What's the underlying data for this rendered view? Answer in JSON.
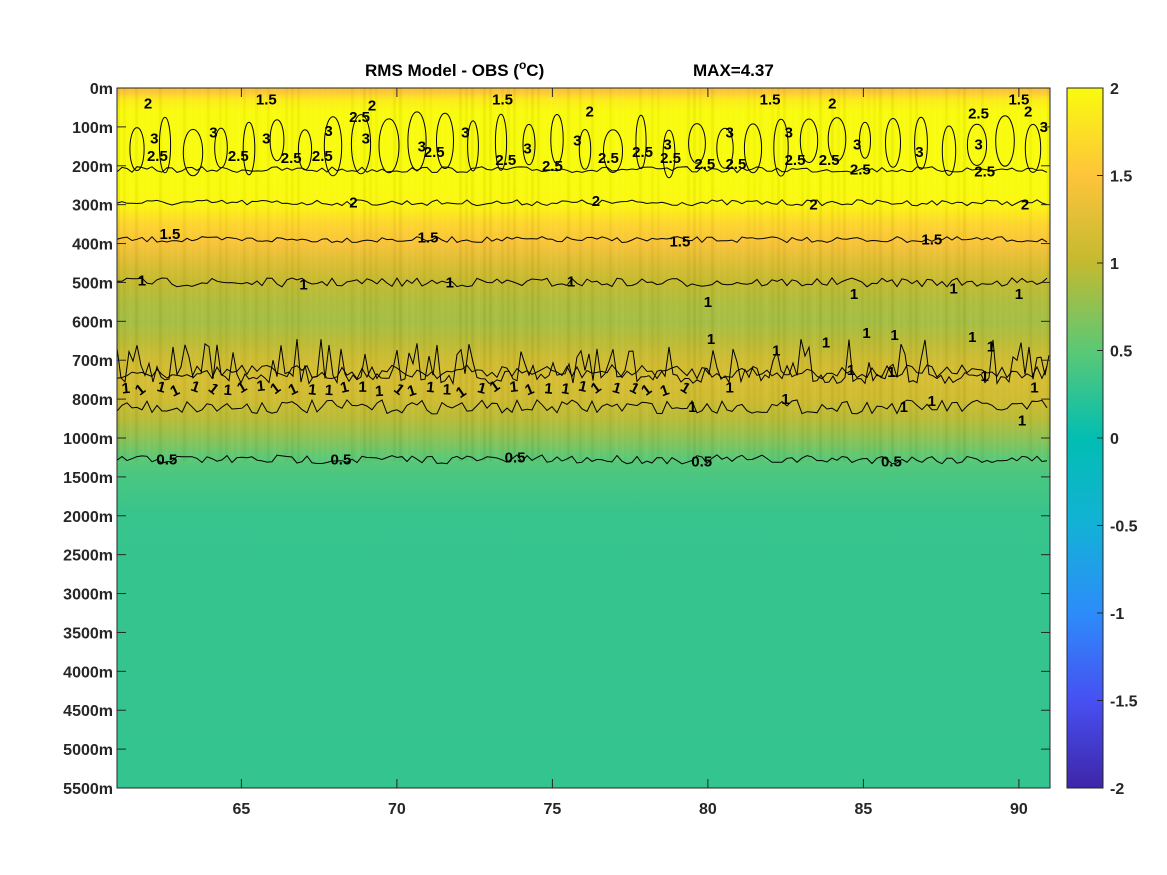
{
  "chart_data": {
    "type": "heatmap",
    "title": "RMS Model - OBS (",
    "title_unit_sup": "o",
    "title_unit_suffix": "C)",
    "title_max": "MAX=4.37",
    "x_ticks": [
      65,
      70,
      75,
      80,
      85,
      90
    ],
    "xlim": [
      61,
      91
    ],
    "y_tick_labels": [
      "0m",
      "100m",
      "200m",
      "300m",
      "400m",
      "500m",
      "600m",
      "700m",
      "800m",
      "1000m",
      "1500m",
      "2000m",
      "2500m",
      "3000m",
      "3500m",
      "4000m",
      "4500m",
      "5000m",
      "5500m"
    ],
    "colorbar": {
      "ticks": [
        2,
        1.5,
        1,
        0.5,
        0,
        -0.5,
        -1,
        -1.5,
        -2
      ],
      "clim": [
        -2,
        2
      ],
      "colormap": "parula"
    },
    "depth_profile": [
      {
        "level": 0.0,
        "value": 1.4
      },
      {
        "level": 0.12,
        "value": 1.55
      },
      {
        "level": 0.3,
        "value": 1.85
      },
      {
        "level": 0.6,
        "value": 2.3
      },
      {
        "level": 1.0,
        "value": 2.5
      },
      {
        "level": 1.5,
        "value": 2.6
      },
      {
        "level": 2.0,
        "value": 2.5
      },
      {
        "level": 2.5,
        "value": 2.25
      },
      {
        "level": 3.0,
        "value": 1.95
      },
      {
        "level": 3.5,
        "value": 1.65
      },
      {
        "level": 4.0,
        "value": 1.45
      },
      {
        "level": 4.5,
        "value": 1.2
      },
      {
        "level": 5.0,
        "value": 1.0
      },
      {
        "level": 5.5,
        "value": 0.9
      },
      {
        "level": 6.0,
        "value": 0.85
      },
      {
        "level": 6.5,
        "value": 0.95
      },
      {
        "level": 7.0,
        "value": 1.1
      },
      {
        "level": 7.5,
        "value": 1.15
      },
      {
        "level": 8.0,
        "value": 1.1
      },
      {
        "level": 8.5,
        "value": 0.95
      },
      {
        "level": 9.0,
        "value": 0.75
      },
      {
        "level": 9.5,
        "value": 0.5
      },
      {
        "level": 10.0,
        "value": 0.4
      },
      {
        "level": 11.0,
        "value": 0.3
      },
      {
        "level": 18.0,
        "value": 0.28
      }
    ],
    "contour_lines": [
      {
        "value": 2.5,
        "level": 2.1
      },
      {
        "value": 2,
        "level": 2.95
      },
      {
        "value": 1.5,
        "level": 3.9
      },
      {
        "value": 1,
        "level": 5.0
      },
      {
        "value": 1,
        "level": 7.3
      },
      {
        "value": 1,
        "level": 8.2
      },
      {
        "value": 0.5,
        "level": 9.55
      }
    ],
    "contour_labels": [
      {
        "text": "2",
        "x": 62.0,
        "level": 0.4
      },
      {
        "text": "1.5",
        "x": 65.8,
        "level": 0.3
      },
      {
        "text": "2",
        "x": 69.2,
        "level": 0.45
      },
      {
        "text": "2.5",
        "x": 68.8,
        "level": 0.75
      },
      {
        "text": "1.5",
        "x": 73.4,
        "level": 0.3
      },
      {
        "text": "2",
        "x": 76.2,
        "level": 0.6
      },
      {
        "text": "1.5",
        "x": 82.0,
        "level": 0.3
      },
      {
        "text": "2",
        "x": 84.0,
        "level": 0.4
      },
      {
        "text": "2.5",
        "x": 88.7,
        "level": 0.65
      },
      {
        "text": "1.5",
        "x": 90.0,
        "level": 0.3
      },
      {
        "text": "2",
        "x": 90.3,
        "level": 0.6
      },
      {
        "text": "3",
        "x": 90.8,
        "level": 1.0
      },
      {
        "text": "3",
        "x": 62.2,
        "level": 1.3
      },
      {
        "text": "3",
        "x": 64.1,
        "level": 1.15
      },
      {
        "text": "3",
        "x": 65.8,
        "level": 1.3
      },
      {
        "text": "3",
        "x": 67.8,
        "level": 1.1
      },
      {
        "text": "3",
        "x": 69.0,
        "level": 1.3
      },
      {
        "text": "3",
        "x": 70.8,
        "level": 1.5
      },
      {
        "text": "3",
        "x": 72.2,
        "level": 1.15
      },
      {
        "text": "3",
        "x": 74.2,
        "level": 1.55
      },
      {
        "text": "3",
        "x": 75.8,
        "level": 1.35
      },
      {
        "text": "3",
        "x": 78.7,
        "level": 1.45
      },
      {
        "text": "3",
        "x": 80.7,
        "level": 1.15
      },
      {
        "text": "3",
        "x": 82.6,
        "level": 1.15
      },
      {
        "text": "3",
        "x": 84.8,
        "level": 1.45
      },
      {
        "text": "3",
        "x": 86.8,
        "level": 1.65
      },
      {
        "text": "3",
        "x": 88.7,
        "level": 1.45
      },
      {
        "text": "2.5",
        "x": 62.3,
        "level": 1.75
      },
      {
        "text": "2.5",
        "x": 64.9,
        "level": 1.75
      },
      {
        "text": "2.5",
        "x": 66.6,
        "level": 1.8
      },
      {
        "text": "2.5",
        "x": 67.6,
        "level": 1.75
      },
      {
        "text": "2.5",
        "x": 71.2,
        "level": 1.65
      },
      {
        "text": "2.5",
        "x": 73.5,
        "level": 1.85
      },
      {
        "text": "2.5",
        "x": 75.0,
        "level": 2.0
      },
      {
        "text": "2.5",
        "x": 76.8,
        "level": 1.8
      },
      {
        "text": "2.5",
        "x": 77.9,
        "level": 1.65
      },
      {
        "text": "2.5",
        "x": 78.8,
        "level": 1.8
      },
      {
        "text": "2.5",
        "x": 79.9,
        "level": 1.95
      },
      {
        "text": "2.5",
        "x": 80.9,
        "level": 1.95
      },
      {
        "text": "2.5",
        "x": 82.8,
        "level": 1.85
      },
      {
        "text": "2.5",
        "x": 83.9,
        "level": 1.85
      },
      {
        "text": "2.5",
        "x": 84.9,
        "level": 2.1
      },
      {
        "text": "2.5",
        "x": 88.9,
        "level": 2.15
      },
      {
        "text": "2",
        "x": 68.6,
        "level": 2.95
      },
      {
        "text": "2",
        "x": 76.4,
        "level": 2.9
      },
      {
        "text": "2",
        "x": 83.4,
        "level": 3.0
      },
      {
        "text": "2",
        "x": 90.2,
        "level": 3.0
      },
      {
        "text": "1.5",
        "x": 62.7,
        "level": 3.75
      },
      {
        "text": "1.5",
        "x": 71.0,
        "level": 3.85
      },
      {
        "text": "1.5",
        "x": 79.1,
        "level": 3.95
      },
      {
        "text": "1.5",
        "x": 87.2,
        "level": 3.9
      },
      {
        "text": "1",
        "x": 61.8,
        "level": 4.95
      },
      {
        "text": "1",
        "x": 67.0,
        "level": 5.05
      },
      {
        "text": "1",
        "x": 71.7,
        "level": 5.0
      },
      {
        "text": "1",
        "x": 75.6,
        "level": 4.98
      },
      {
        "text": "1",
        "x": 80.0,
        "level": 5.5
      },
      {
        "text": "1",
        "x": 84.7,
        "level": 5.3
      },
      {
        "text": "1",
        "x": 87.9,
        "level": 5.15
      },
      {
        "text": "1",
        "x": 90.0,
        "level": 5.3
      },
      {
        "text": "1",
        "x": 80.1,
        "level": 6.45
      },
      {
        "text": "1",
        "x": 82.2,
        "level": 6.75
      },
      {
        "text": "1",
        "x": 83.8,
        "level": 6.55
      },
      {
        "text": "1",
        "x": 85.1,
        "level": 6.3
      },
      {
        "text": "1",
        "x": 86.0,
        "level": 6.35
      },
      {
        "text": "1",
        "x": 84.6,
        "level": 7.25
      },
      {
        "text": "1",
        "x": 85.9,
        "level": 7.3
      },
      {
        "text": "1",
        "x": 88.5,
        "level": 6.4
      },
      {
        "text": "1",
        "x": 89.1,
        "level": 6.65
      },
      {
        "text": "1",
        "x": 88.9,
        "level": 7.4
      },
      {
        "text": "1",
        "x": 90.5,
        "level": 7.7
      },
      {
        "text": "1",
        "x": 79.5,
        "level": 8.2
      },
      {
        "text": "1",
        "x": 80.7,
        "level": 7.7
      },
      {
        "text": "1",
        "x": 82.5,
        "level": 8.0
      },
      {
        "text": "1",
        "x": 86.3,
        "level": 8.2
      },
      {
        "text": "1",
        "x": 87.2,
        "level": 8.05
      },
      {
        "text": "1",
        "x": 90.1,
        "level": 8.55
      },
      {
        "text": "0.5",
        "x": 62.6,
        "level": 9.55
      },
      {
        "text": "0.5",
        "x": 68.2,
        "level": 9.55
      },
      {
        "text": "0.5",
        "x": 73.8,
        "level": 9.5
      },
      {
        "text": "0.5",
        "x": 79.8,
        "level": 9.6
      },
      {
        "text": "0.5",
        "x": 85.9,
        "level": 9.6
      }
    ],
    "marker_row": {
      "level": 7.85,
      "x_from": 61.3,
      "x_to": 79.2,
      "count": 34,
      "label": "1"
    }
  }
}
